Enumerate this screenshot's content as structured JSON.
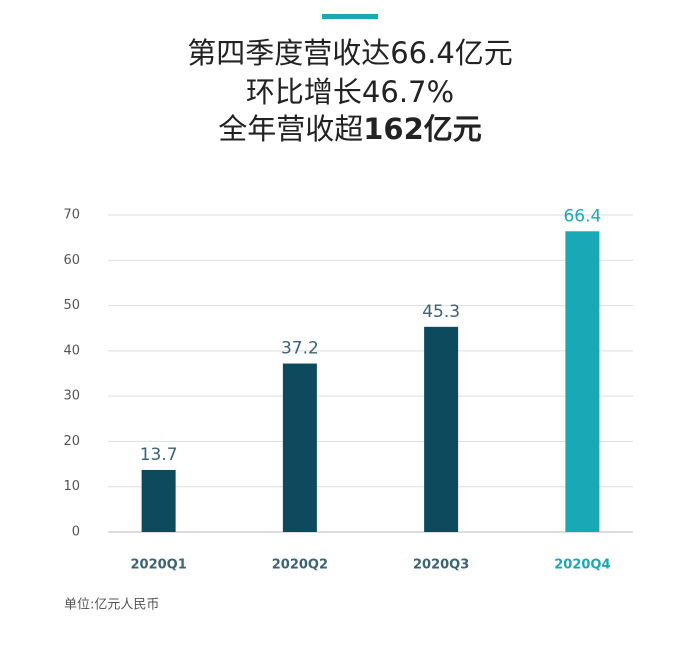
{
  "chart_data": {
    "type": "bar",
    "title_lines": [
      "第四季度营收达66.4亿元",
      "环比增长46.7%"
    ],
    "title_last_line": {
      "text": "全年营收超",
      "bold": "162亿元"
    },
    "categories": [
      "2020Q1",
      "2020Q2",
      "2020Q3",
      "2020Q4"
    ],
    "values": [
      13.7,
      37.2,
      45.3,
      66.4
    ],
    "colors": [
      "#0d4a5e",
      "#0d4a5e",
      "#0d4a5e",
      "#19a8b5"
    ],
    "label_colors": [
      "#3a6473",
      "#3a6473",
      "#3a6473",
      "#19a8b5"
    ],
    "ylim": [
      0,
      70
    ],
    "yticks": [
      0,
      10,
      20,
      30,
      40,
      50,
      60,
      70
    ],
    "grid": true,
    "note": "单位:亿元人民币"
  }
}
